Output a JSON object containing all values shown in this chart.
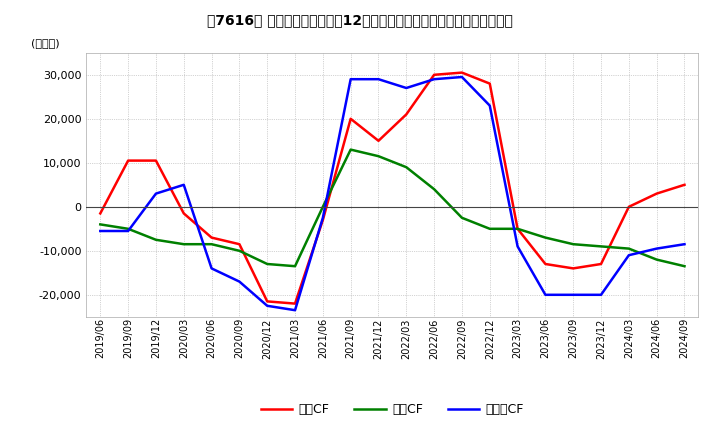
{
  "title": "【7616】 キャッシュフローの12か月移動合計の対前年同期増減額の推移",
  "ylabel": "(百万円)",
  "ylim": [
    -25000,
    35000
  ],
  "yticks": [
    -20000,
    -10000,
    0,
    10000,
    20000,
    30000
  ],
  "legend_labels": [
    "営業CF",
    "投資CF",
    "フリーCF"
  ],
  "line_colors": [
    "#ff0000",
    "#008000",
    "#0000ff"
  ],
  "dates": [
    "2019/06",
    "2019/09",
    "2019/12",
    "2020/03",
    "2020/06",
    "2020/09",
    "2020/12",
    "2021/03",
    "2021/06",
    "2021/09",
    "2021/12",
    "2022/03",
    "2022/06",
    "2022/09",
    "2022/12",
    "2023/03",
    "2023/06",
    "2023/09",
    "2023/12",
    "2024/03",
    "2024/06",
    "2024/09"
  ],
  "operating_cf": [
    -1500,
    10500,
    10500,
    -1500,
    -7000,
    -8500,
    -21500,
    -22000,
    -3000,
    20000,
    15000,
    21000,
    30000,
    30500,
    28000,
    -5000,
    -13000,
    -14000,
    -13000,
    0,
    3000,
    5000
  ],
  "investing_cf": [
    -4000,
    -5000,
    -7500,
    -8500,
    -8500,
    -10000,
    -13000,
    -13500,
    0,
    13000,
    11500,
    9000,
    4000,
    -2500,
    -5000,
    -5000,
    -7000,
    -8500,
    -9000,
    -9500,
    -12000,
    -13500
  ],
  "free_cf": [
    -5500,
    -5500,
    3000,
    5000,
    -14000,
    -17000,
    -22500,
    -23500,
    -2500,
    29000,
    29000,
    27000,
    29000,
    29500,
    23000,
    -9000,
    -20000,
    -20000,
    -20000,
    -11000,
    -9500,
    -8500
  ],
  "background_color": "#ffffff",
  "grid_color": "#aaaaaa",
  "grid_style": "dotted",
  "line_width": 1.8
}
